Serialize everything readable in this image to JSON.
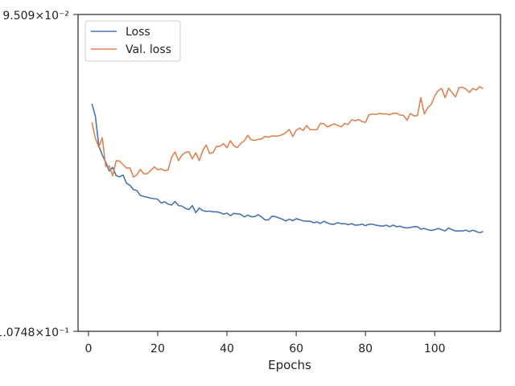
{
  "chart_data": {
    "type": "line",
    "title": "",
    "xlabel": "Epochs",
    "ylabel": "",
    "xlim": [
      -3,
      119
    ],
    "xticks": [
      0,
      20,
      40,
      60,
      80,
      100
    ],
    "yscale": "log",
    "ytick_labels": [
      "9.509×10⁻²",
      "1.0748×10⁻¹"
    ],
    "grid": false,
    "legend_position": "top-left",
    "colors": {
      "Loss": "#4c72b0",
      "Val. loss": "#dd8452"
    },
    "x": [
      1,
      2,
      3,
      4,
      5,
      6,
      7,
      8,
      9,
      10,
      11,
      12,
      13,
      14,
      15,
      16,
      17,
      18,
      19,
      20,
      21,
      22,
      23,
      24,
      25,
      26,
      27,
      28,
      29,
      30,
      31,
      32,
      33,
      34,
      35,
      36,
      37,
      38,
      39,
      40,
      41,
      42,
      43,
      44,
      45,
      46,
      47,
      48,
      49,
      50,
      51,
      52,
      53,
      54,
      55,
      56,
      57,
      58,
      59,
      60,
      61,
      62,
      63,
      64,
      65,
      66,
      67,
      68,
      69,
      70,
      71,
      72,
      73,
      74,
      75,
      76,
      77,
      78,
      79,
      80,
      81,
      82,
      83,
      84,
      85,
      86,
      87,
      88,
      89,
      90,
      91,
      92,
      93,
      94,
      95,
      96,
      97,
      98,
      99,
      100,
      101,
      102,
      103,
      104,
      105,
      106,
      107,
      108,
      109,
      110,
      111,
      112,
      113,
      114
    ],
    "series": [
      {
        "name": "Loss",
        "values": [
          0.09843,
          0.0989,
          0.10005,
          0.1004,
          0.10068,
          0.10102,
          0.10088,
          0.1012,
          0.10125,
          0.10118,
          0.1015,
          0.10158,
          0.10175,
          0.10179,
          0.10198,
          0.10202,
          0.10205,
          0.10209,
          0.10211,
          0.10213,
          0.10228,
          0.10223,
          0.10232,
          0.10236,
          0.10222,
          0.10238,
          0.1024,
          0.10249,
          0.10254,
          0.10238,
          0.10266,
          0.10248,
          0.10258,
          0.10261,
          0.1026,
          0.10263,
          0.10263,
          0.10266,
          0.10272,
          0.10268,
          0.10278,
          0.10269,
          0.10271,
          0.10273,
          0.10283,
          0.10276,
          0.10282,
          0.10282,
          0.10274,
          0.10283,
          0.10295,
          0.10295,
          0.1028,
          0.10282,
          0.10287,
          0.10292,
          0.10299,
          0.10292,
          0.10298,
          0.1029,
          0.10294,
          0.10299,
          0.103,
          0.103,
          0.10306,
          0.10303,
          0.10309,
          0.103,
          0.10307,
          0.10312,
          0.10312,
          0.10306,
          0.1031,
          0.1031,
          0.10314,
          0.1031,
          0.10316,
          0.10315,
          0.10312,
          0.10318,
          0.10312,
          0.10312,
          0.10316,
          0.10318,
          0.1032,
          0.10316,
          0.10322,
          0.10316,
          0.10322,
          0.1032,
          0.10325,
          0.10327,
          0.10325,
          0.10322,
          0.10322,
          0.10332,
          0.10329,
          0.10334,
          0.10337,
          0.10334,
          0.10329,
          0.10334,
          0.10339,
          0.10327,
          0.10334,
          0.10339,
          0.10339,
          0.10339,
          0.10336,
          0.10341,
          0.10336,
          0.10341,
          0.10346,
          0.10341
        ]
      },
      {
        "name": "Val. loss",
        "values": [
          0.09914,
          0.09975,
          0.1001,
          0.09973,
          0.10085,
          0.10082,
          0.10121,
          0.10062,
          0.10063,
          0.10077,
          0.10091,
          0.1009,
          0.10126,
          0.10117,
          0.10096,
          0.10113,
          0.10113,
          0.101,
          0.10086,
          0.10097,
          0.10094,
          0.10101,
          0.10098,
          0.10049,
          0.10028,
          0.10062,
          0.1004,
          0.1003,
          0.10027,
          0.10055,
          0.10031,
          0.10062,
          0.10023,
          0.10001,
          0.10034,
          0.1003,
          0.10006,
          0.10006,
          0.09996,
          0.10012,
          0.09985,
          0.10004,
          0.10011,
          0.09995,
          0.09985,
          0.09964,
          0.09981,
          0.09983,
          0.0998,
          0.09977,
          0.09968,
          0.09971,
          0.09966,
          0.09967,
          0.09966,
          0.09961,
          0.09954,
          0.09941,
          0.09969,
          0.09944,
          0.09936,
          0.09945,
          0.09926,
          0.09942,
          0.09942,
          0.09942,
          0.09918,
          0.09919,
          0.09932,
          0.09925,
          0.0992,
          0.09926,
          0.09931,
          0.09918,
          0.09922,
          0.09904,
          0.09908,
          0.09903,
          0.09911,
          0.09914,
          0.09885,
          0.09882,
          0.09884,
          0.0988,
          0.09881,
          0.09882,
          0.09885,
          0.09879,
          0.09879,
          0.09886,
          0.09887,
          0.09906,
          0.0988,
          0.09889,
          0.09888,
          0.0982,
          0.09882,
          0.09858,
          0.09845,
          0.09813,
          0.09793,
          0.09785,
          0.0982,
          0.09784,
          0.098,
          0.09817,
          0.09782,
          0.0978,
          0.09787,
          0.098,
          0.09785,
          0.09791,
          0.09778,
          0.09786
        ]
      }
    ]
  }
}
